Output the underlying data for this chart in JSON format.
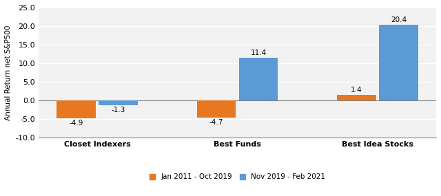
{
  "categories": [
    "Closet Indexers",
    "Best Funds",
    "Best Idea Stocks"
  ],
  "series1_label": "Jan 2011 - Oct 2019",
  "series2_label": "Nov 2019 - Feb 2021",
  "series1_values": [
    -4.9,
    -4.7,
    1.4
  ],
  "series2_values": [
    -1.3,
    11.4,
    20.4
  ],
  "series1_color": "#E87722",
  "series2_color": "#5B9BD5",
  "ylabel": "Annual Return net S&P500",
  "ylim": [
    -10.0,
    25.0
  ],
  "yticks": [
    -10.0,
    -5.0,
    0.0,
    5.0,
    10.0,
    15.0,
    20.0,
    25.0
  ],
  "bar_width": 0.28,
  "label_fontsize": 7.5,
  "axis_fontsize": 7.5,
  "legend_fontsize": 7.5,
  "tick_fontsize": 8,
  "cat_fontsize": 8,
  "background_color": "#F2F2F2"
}
